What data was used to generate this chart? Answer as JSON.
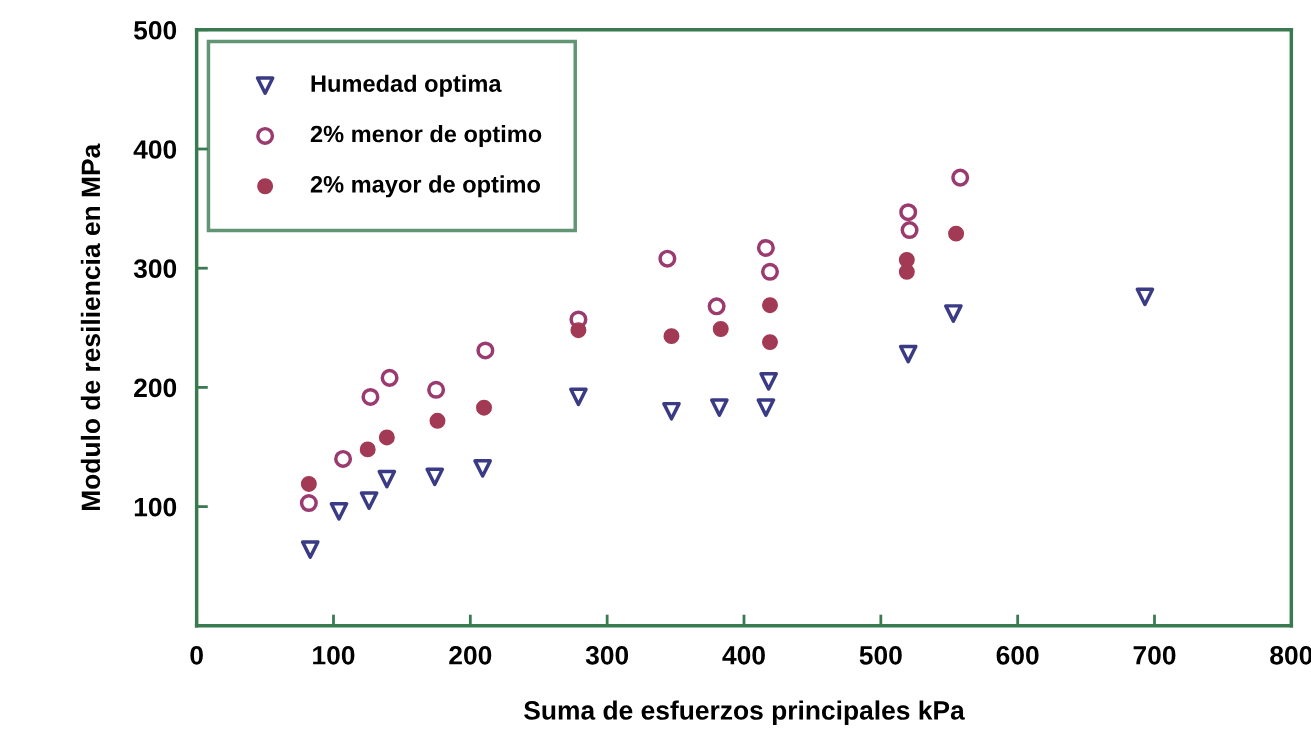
{
  "chart_data": {
    "type": "scatter",
    "xlabel": "Suma de esfuerzos principales kPa",
    "ylabel": "Modulo de resiliencia en MPa",
    "xlim": [
      0,
      800
    ],
    "xticks": [
      0,
      100,
      200,
      300,
      400,
      500,
      600,
      700,
      800
    ],
    "ylim": [
      0,
      500
    ],
    "yticks": [
      100,
      200,
      300,
      400,
      500
    ],
    "grid": false,
    "legend": "top left",
    "series": [
      {
        "name": "Humedad optima",
        "color": "#3b3b85",
        "marker": "triangle",
        "x": [
          83,
          104,
          126,
          139,
          174,
          209,
          279,
          347,
          382,
          416,
          418,
          520,
          553,
          693
        ],
        "values": [
          64,
          96,
          105,
          123,
          125,
          132,
          192,
          180,
          183,
          183,
          205,
          228,
          262,
          276
        ]
      },
      {
        "name": "2% menor de optimo",
        "color": "#9a3a6e",
        "marker": "circle",
        "x": [
          82,
          107,
          127,
          141,
          175,
          211,
          279,
          344,
          380,
          416,
          419,
          520,
          521,
          558
        ],
        "values": [
          103,
          140,
          192,
          208,
          198,
          231,
          257,
          308,
          268,
          317,
          297,
          347,
          332,
          376
        ]
      },
      {
        "name": "2% mayor de optimo",
        "color": "#a33a55",
        "marker": "circle",
        "x": [
          82,
          125,
          139,
          176,
          210,
          279,
          347,
          383,
          419,
          419,
          519,
          519,
          555
        ],
        "values": [
          119,
          148,
          158,
          172,
          183,
          248,
          243,
          249,
          269,
          238,
          307,
          297,
          329
        ]
      }
    ]
  }
}
